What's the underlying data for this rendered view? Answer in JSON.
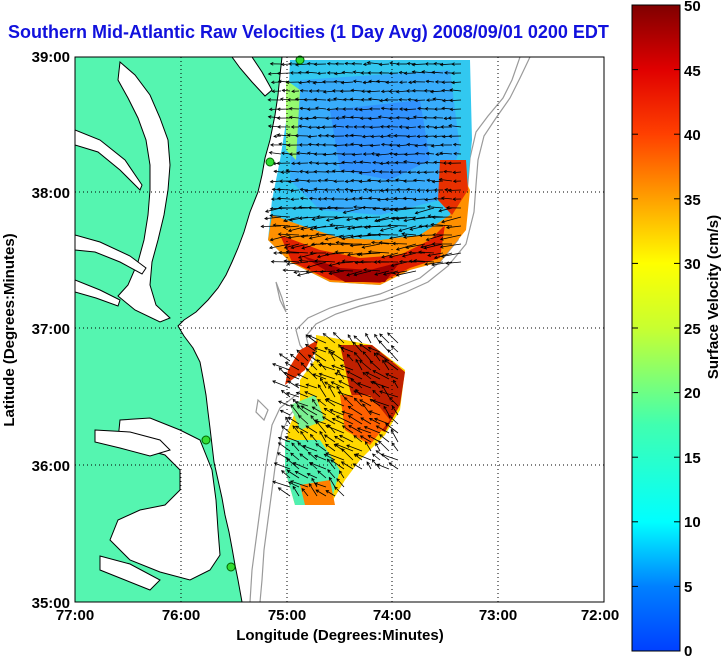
{
  "title": "Southern Mid-Atlantic Raw Velocities (1 Day Avg) 2008/09/01 0200 EDT",
  "xlabel": "Longitude (Degrees:Minutes)",
  "ylabel": "Latitude (Degrees:Minutes)",
  "colorbar_label": "Surface Velocity (cm/s)",
  "x_ticks": [
    "77:00",
    "76:00",
    "75:00",
    "74:00",
    "73:00",
    "72:00"
  ],
  "y_ticks": [
    "39:00",
    "38:00",
    "37:00",
    "36:00",
    "35:00"
  ],
  "colorbar_ticks": [
    "0",
    "5",
    "10",
    "15",
    "20",
    "25",
    "30",
    "35",
    "40",
    "45",
    "50"
  ],
  "colors": {
    "land": "#55f5b0",
    "title": "#1111dd",
    "station": "#33dd33",
    "bathymetry": "#9a9a9a"
  },
  "icons": [
    "hf-radar-station-marker"
  ]
}
